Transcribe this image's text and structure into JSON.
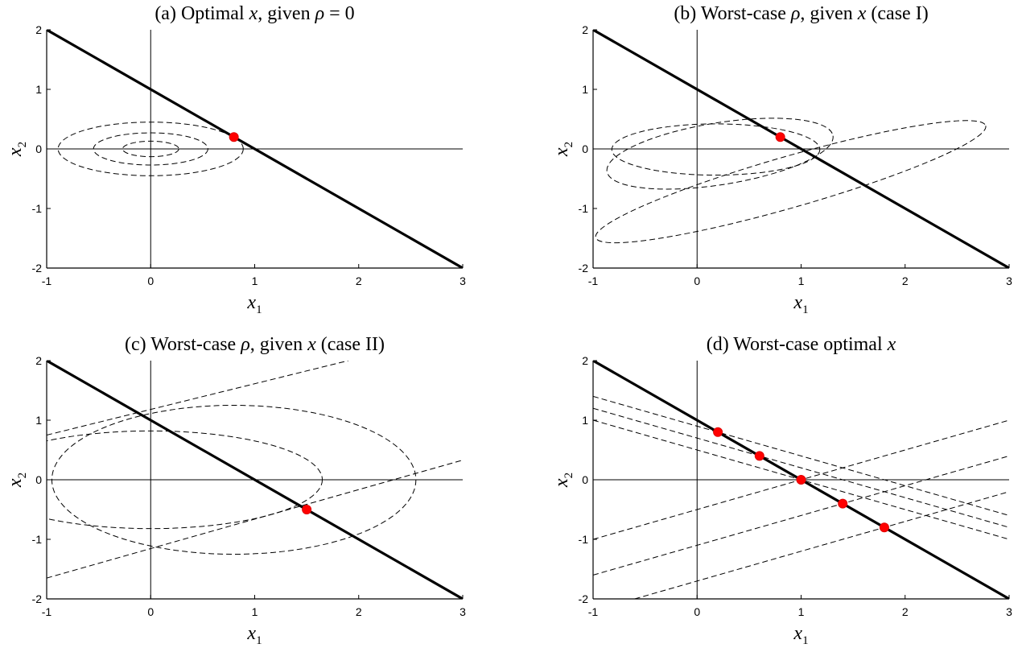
{
  "chart_data": [
    {
      "type": "line",
      "title_parts": [
        "(a) Optimal ",
        "x",
        ", given ",
        "ρ",
        " = 0"
      ],
      "xlabel": {
        "base": "x",
        "sub": "1"
      },
      "ylabel": {
        "base": "x",
        "sub": "2"
      },
      "xlim": [
        -1,
        3
      ],
      "ylim": [
        -2,
        2
      ],
      "xticks": [
        -1,
        0,
        1,
        2,
        3
      ],
      "xtick_labels": [
        "-1",
        "0",
        "1",
        "2",
        "3"
      ],
      "yticks": [
        -2,
        -1,
        0,
        1,
        2
      ],
      "ytick_labels": [
        "-2",
        "-1",
        "0",
        "1",
        "2"
      ],
      "grid": false,
      "constraint_line": {
        "points": [
          [
            -1,
            2
          ],
          [
            3,
            -2
          ]
        ],
        "style": "solid-thick"
      },
      "ellipses": [
        {
          "cx": 0,
          "cy": 0,
          "rx": 0.89,
          "ry": 0.45,
          "angle": 0
        },
        {
          "cx": 0,
          "cy": 0,
          "rx": 0.55,
          "ry": 0.27,
          "angle": 0
        },
        {
          "cx": 0,
          "cy": 0,
          "rx": 0.27,
          "ry": 0.13,
          "angle": 0
        }
      ],
      "dashed_lines": [],
      "points": [
        [
          0.8,
          0.2
        ]
      ]
    },
    {
      "type": "line",
      "title_parts": [
        "(b) Worst-case ",
        "ρ",
        ", given ",
        "x",
        " (case I)"
      ],
      "xlabel": {
        "base": "x",
        "sub": "1"
      },
      "ylabel": {
        "base": "x",
        "sub": "2"
      },
      "xlim": [
        -1,
        3
      ],
      "ylim": [
        -2,
        2
      ],
      "xticks": [
        -1,
        0,
        1,
        2,
        3
      ],
      "xtick_labels": [
        "-1",
        "0",
        "1",
        "2",
        "3"
      ],
      "yticks": [
        -2,
        -1,
        0,
        1,
        2
      ],
      "ytick_labels": [
        "-2",
        "-1",
        "0",
        "1",
        "2"
      ],
      "grid": false,
      "constraint_line": {
        "points": [
          [
            -1,
            2
          ],
          [
            3,
            -2
          ]
        ],
        "style": "solid-thick"
      },
      "ellipses": [
        {
          "cx": 0.18,
          "cy": -0.01,
          "rx": 1.0,
          "ry": 0.43,
          "angle": 0
        },
        {
          "cx": 0.22,
          "cy": -0.08,
          "rx": 1.1,
          "ry": 0.52,
          "angle": -9
        },
        {
          "cx": 0.9,
          "cy": -0.55,
          "rx": 1.95,
          "ry": 0.43,
          "angle": -16
        }
      ],
      "dashed_lines": [],
      "points": [
        [
          0.8,
          0.2
        ]
      ]
    },
    {
      "type": "line",
      "title_parts": [
        "(c) Worst-case ",
        "ρ",
        ", given ",
        "x",
        " (case II)"
      ],
      "xlabel": {
        "base": "x",
        "sub": "1"
      },
      "ylabel": {
        "base": "x",
        "sub": "2"
      },
      "xlim": [
        -1,
        3
      ],
      "ylim": [
        -2,
        2
      ],
      "xticks": [
        -1,
        0,
        1,
        2,
        3
      ],
      "xtick_labels": [
        "-1",
        "0",
        "1",
        "2",
        "3"
      ],
      "yticks": [
        -2,
        -1,
        0,
        1,
        2
      ],
      "ytick_labels": [
        "-2",
        "-1",
        "0",
        "1",
        "2"
      ],
      "grid": false,
      "constraint_line": {
        "points": [
          [
            -1,
            2
          ],
          [
            3,
            -2
          ]
        ],
        "style": "solid-thick"
      },
      "ellipses": [
        {
          "cx": 0.0,
          "cy": 0.0,
          "rx": 1.65,
          "ry": 0.82,
          "angle": 0
        },
        {
          "cx": 0.8,
          "cy": 0.0,
          "rx": 1.75,
          "ry": 1.25,
          "angle": 0
        }
      ],
      "dashed_lines": [
        {
          "points": [
            [
              -1,
              -1.65
            ],
            [
              3,
              0.33
            ]
          ]
        },
        {
          "points": [
            [
              -1,
              0.75
            ],
            [
              1.9,
              2.0
            ]
          ]
        }
      ],
      "points": [
        [
          1.5,
          -0.5
        ]
      ]
    },
    {
      "type": "line",
      "title_parts": [
        "(d) Worst-case optimal ",
        "x"
      ],
      "xlabel": {
        "base": "x",
        "sub": "1"
      },
      "ylabel": {
        "base": "x",
        "sub": "2"
      },
      "xlim": [
        -1,
        3
      ],
      "ylim": [
        -2,
        2
      ],
      "xticks": [
        -1,
        0,
        1,
        2,
        3
      ],
      "xtick_labels": [
        "-1",
        "0",
        "1",
        "2",
        "3"
      ],
      "yticks": [
        -2,
        -1,
        0,
        1,
        2
      ],
      "ytick_labels": [
        "-2",
        "-1",
        "0",
        "1",
        "2"
      ],
      "grid": false,
      "constraint_line": {
        "points": [
          [
            -1,
            2
          ],
          [
            3,
            -2
          ]
        ],
        "style": "solid-thick"
      },
      "ellipses": [],
      "dashed_lines": [
        {
          "points": [
            [
              -1,
              1.4
            ],
            [
              3,
              -0.6
            ]
          ]
        },
        {
          "points": [
            [
              -1,
              1.2
            ],
            [
              3,
              -0.8
            ]
          ]
        },
        {
          "points": [
            [
              -1,
              1.0
            ],
            [
              3,
              -1.0
            ]
          ]
        },
        {
          "points": [
            [
              -1,
              -1.0
            ],
            [
              3,
              1.0
            ]
          ]
        },
        {
          "points": [
            [
              -1,
              -1.6
            ],
            [
              3,
              0.4
            ]
          ]
        },
        {
          "points": [
            [
              -0.6,
              -2.0
            ],
            [
              3,
              -0.2
            ]
          ]
        }
      ],
      "points": [
        [
          0.2,
          0.8
        ],
        [
          0.6,
          0.4
        ],
        [
          1.0,
          0.0
        ],
        [
          1.4,
          -0.4
        ],
        [
          1.8,
          -0.8
        ]
      ]
    }
  ]
}
